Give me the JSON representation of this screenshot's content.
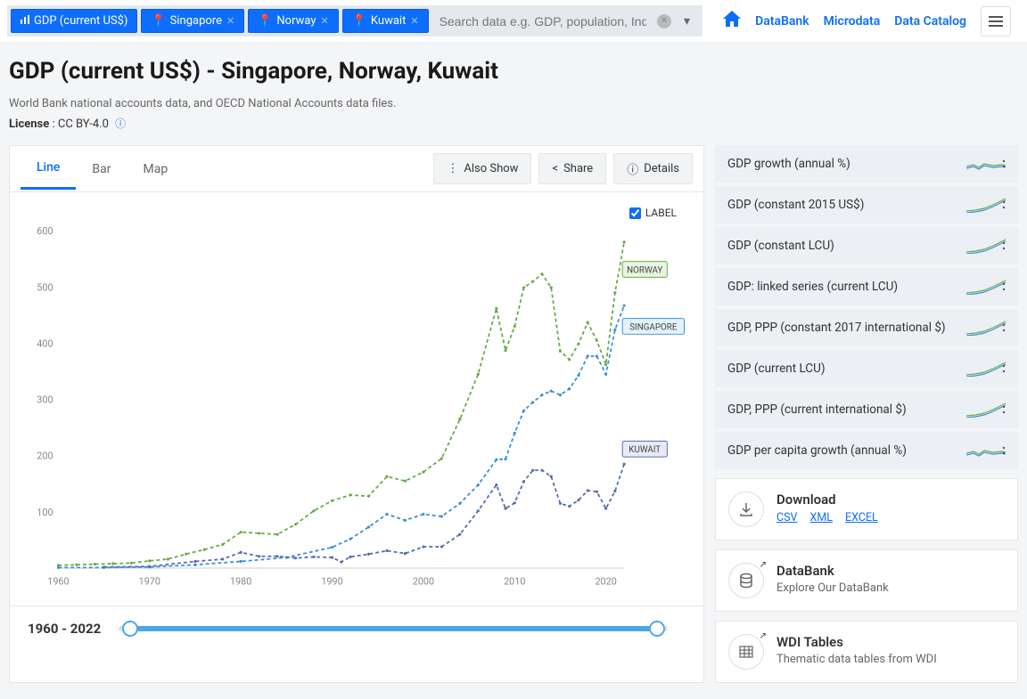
{
  "search": {
    "indicator_chip": "GDP (current US$)",
    "country_chips": [
      "Singapore",
      "Norway",
      "Kuwait"
    ],
    "placeholder": "Search data e.g. GDP, population, Indonesia"
  },
  "nav": {
    "links": [
      "DataBank",
      "Microdata",
      "Data Catalog"
    ]
  },
  "page": {
    "title": "GDP (current US$) - Singapore, Norway, Kuwait",
    "subtitle": "World Bank national accounts data, and OECD National Accounts data files.",
    "license_label": "License",
    "license_value": "CC BY-4.0"
  },
  "tabs": {
    "items": [
      "Line",
      "Bar",
      "Map"
    ],
    "active": 0
  },
  "actions": {
    "also_show": "Also Show",
    "share": "Share",
    "details": "Details"
  },
  "label_toggle": "LABEL",
  "chart": {
    "type": "line",
    "xlim": [
      1960,
      2022
    ],
    "ylim": [
      0,
      600
    ],
    "ytick_step": 100,
    "xtick_step": 10,
    "background_color": "#ffffff",
    "grid_color": "#e8e8e8",
    "axis_color": "#cccccc",
    "tick_font_size": 11,
    "tick_color": "#888888",
    "dash": "4 3",
    "line_width": 1.8,
    "series": [
      {
        "name": "NORWAY",
        "color": "#6aaa4a",
        "label_bg": "#e8f5e0",
        "label_border": "#6aaa4a",
        "data": [
          [
            1960,
            5
          ],
          [
            1962,
            6
          ],
          [
            1964,
            7
          ],
          [
            1966,
            8
          ],
          [
            1968,
            9
          ],
          [
            1970,
            13
          ],
          [
            1972,
            16
          ],
          [
            1974,
            25
          ],
          [
            1976,
            33
          ],
          [
            1978,
            42
          ],
          [
            1980,
            64
          ],
          [
            1982,
            62
          ],
          [
            1984,
            60
          ],
          [
            1986,
            78
          ],
          [
            1988,
            102
          ],
          [
            1990,
            120
          ],
          [
            1992,
            130
          ],
          [
            1994,
            128
          ],
          [
            1996,
            163
          ],
          [
            1998,
            155
          ],
          [
            2000,
            171
          ],
          [
            2002,
            195
          ],
          [
            2004,
            265
          ],
          [
            2006,
            345
          ],
          [
            2008,
            462
          ],
          [
            2009,
            387
          ],
          [
            2010,
            430
          ],
          [
            2011,
            499
          ],
          [
            2012,
            510
          ],
          [
            2013,
            523
          ],
          [
            2014,
            499
          ],
          [
            2015,
            386
          ],
          [
            2016,
            371
          ],
          [
            2017,
            399
          ],
          [
            2018,
            437
          ],
          [
            2019,
            405
          ],
          [
            2020,
            362
          ],
          [
            2021,
            490
          ],
          [
            2022,
            580
          ]
        ]
      },
      {
        "name": "SINGAPORE",
        "color": "#3a8fd6",
        "label_bg": "#e4f2fb",
        "label_border": "#3a8fd6",
        "data": [
          [
            1960,
            1
          ],
          [
            1965,
            1
          ],
          [
            1970,
            2
          ],
          [
            1975,
            6
          ],
          [
            1980,
            12
          ],
          [
            1985,
            19
          ],
          [
            1990,
            37
          ],
          [
            1992,
            52
          ],
          [
            1994,
            73
          ],
          [
            1996,
            96
          ],
          [
            1998,
            85
          ],
          [
            2000,
            96
          ],
          [
            2002,
            92
          ],
          [
            2004,
            115
          ],
          [
            2006,
            148
          ],
          [
            2008,
            193
          ],
          [
            2009,
            194
          ],
          [
            2010,
            240
          ],
          [
            2011,
            280
          ],
          [
            2012,
            295
          ],
          [
            2013,
            308
          ],
          [
            2014,
            315
          ],
          [
            2015,
            308
          ],
          [
            2016,
            319
          ],
          [
            2017,
            343
          ],
          [
            2018,
            377
          ],
          [
            2019,
            377
          ],
          [
            2020,
            345
          ],
          [
            2021,
            424
          ],
          [
            2022,
            467
          ]
        ]
      },
      {
        "name": "KUWAIT",
        "color": "#5a6ab0",
        "label_bg": "#e8eaf6",
        "label_border": "#5a6ab0",
        "data": [
          [
            1965,
            2
          ],
          [
            1970,
            3
          ],
          [
            1975,
            12
          ],
          [
            1978,
            16
          ],
          [
            1980,
            28
          ],
          [
            1982,
            21
          ],
          [
            1984,
            21
          ],
          [
            1986,
            18
          ],
          [
            1988,
            20
          ],
          [
            1990,
            19
          ],
          [
            1991,
            11
          ],
          [
            1992,
            20
          ],
          [
            1994,
            25
          ],
          [
            1996,
            31
          ],
          [
            1998,
            26
          ],
          [
            2000,
            38
          ],
          [
            2002,
            38
          ],
          [
            2004,
            60
          ],
          [
            2006,
            102
          ],
          [
            2008,
            148
          ],
          [
            2009,
            106
          ],
          [
            2010,
            116
          ],
          [
            2011,
            154
          ],
          [
            2012,
            174
          ],
          [
            2013,
            174
          ],
          [
            2014,
            163
          ],
          [
            2015,
            115
          ],
          [
            2016,
            110
          ],
          [
            2017,
            121
          ],
          [
            2018,
            138
          ],
          [
            2019,
            136
          ],
          [
            2020,
            106
          ],
          [
            2021,
            137
          ],
          [
            2022,
            185
          ]
        ]
      }
    ]
  },
  "range": {
    "label": "1960 - 2022"
  },
  "indicators": [
    {
      "label": "GDP growth (annual %)",
      "spark": "flat"
    },
    {
      "label": "GDP (constant 2015 US$)",
      "spark": "rise"
    },
    {
      "label": "GDP (constant LCU)",
      "spark": "rise"
    },
    {
      "label": "GDP: linked series (current LCU)",
      "spark": "rise"
    },
    {
      "label": "GDP, PPP (constant 2017 international $)",
      "spark": "rise"
    },
    {
      "label": "GDP (current LCU)",
      "spark": "rise"
    },
    {
      "label": "GDP, PPP (current international $)",
      "spark": "rise"
    },
    {
      "label": "GDP per capita growth (annual %)",
      "spark": "flat"
    }
  ],
  "cards": {
    "download": {
      "title": "Download",
      "links": [
        "CSV",
        "XML",
        "EXCEL"
      ]
    },
    "databank": {
      "title": "DataBank",
      "sub": "Explore Our DataBank"
    },
    "wdi": {
      "title": "WDI Tables",
      "sub": "Thematic data tables from WDI"
    }
  }
}
